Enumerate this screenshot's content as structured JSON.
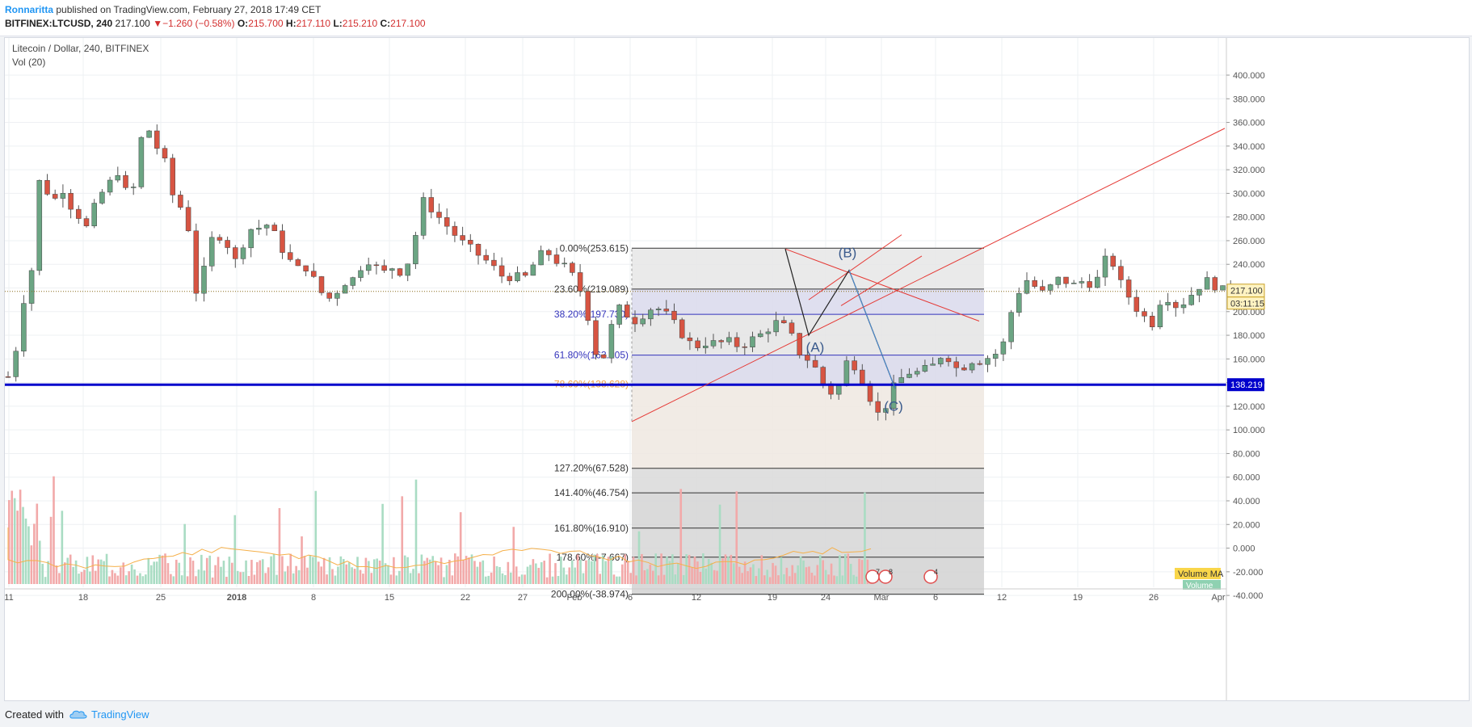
{
  "header": {
    "author": "Ronnaritta",
    "published": "published on TradingView.com, February 27, 2018 17:49 CET",
    "symbol": "BITFINEX:LTCUSD, 240",
    "last": "217.100",
    "change": "−1.260 (−0.58%)",
    "o_label": "O:",
    "o_value": "215.700",
    "h_label": "H:",
    "h_value": "217.110",
    "l_label": "L:",
    "l_value": "215.210",
    "c_label": "C:",
    "c_value": "217.100"
  },
  "legend": {
    "title": "Litecoin / Dollar, 240, BITFINEX",
    "volume": "Vol (20)"
  },
  "footer": {
    "created": "Created with",
    "brand": "TradingView"
  },
  "colors": {
    "up": "#6ba583",
    "down": "#d75442",
    "support": "#0000cc",
    "fib_line": "#333333",
    "trend": "#e53935",
    "wave": "#3a5a8c",
    "price_tag": "#0000cc"
  },
  "chart_data": {
    "type": "candlestick",
    "yaxis_ticks": [
      "400.000",
      "380.000",
      "360.000",
      "340.000",
      "320.000",
      "300.000",
      "280.000",
      "260.000",
      "240.000",
      "220.000",
      "200.000",
      "180.000",
      "160.000",
      "140.000",
      "120.000",
      "100.000",
      "80.000",
      "60.000",
      "40.000",
      "20.000",
      "0.000",
      "-20.000",
      "-40.000"
    ],
    "xaxis_ticks": [
      "11",
      "18",
      "25",
      "2018",
      "8",
      "15",
      "22",
      "27",
      "Feb",
      "6",
      "12",
      "19",
      "24",
      "Mar",
      "6",
      "12",
      "19",
      "26",
      "Apr"
    ],
    "price_path": [
      [
        0,
        145
      ],
      [
        0.4,
        160
      ],
      [
        1,
        210
      ],
      [
        1.6,
        240
      ],
      [
        2,
        310
      ],
      [
        2.6,
        300
      ],
      [
        3,
        295
      ],
      [
        3.6,
        305
      ],
      [
        4,
        290
      ],
      [
        4.6,
        280
      ],
      [
        5,
        270
      ],
      [
        5.6,
        290
      ],
      [
        6,
        300
      ],
      [
        6.6,
        310
      ],
      [
        7,
        320
      ],
      [
        7.6,
        300
      ],
      [
        8,
        300
      ],
      [
        8.5,
        345
      ],
      [
        9,
        355
      ],
      [
        9.5,
        340
      ],
      [
        10,
        330
      ],
      [
        10.5,
        300
      ],
      [
        11,
        290
      ],
      [
        11.5,
        280
      ],
      [
        12,
        215
      ],
      [
        12.5,
        230
      ],
      [
        13,
        260
      ],
      [
        13.5,
        265
      ],
      [
        14,
        260
      ],
      [
        14.5,
        240
      ],
      [
        15,
        255
      ],
      [
        15.5,
        270
      ],
      [
        16,
        270
      ],
      [
        16.5,
        275
      ],
      [
        17,
        268
      ],
      [
        17.5,
        255
      ],
      [
        18,
        245
      ],
      [
        18.5,
        235
      ],
      [
        19,
        240
      ],
      [
        19.5,
        230
      ],
      [
        20,
        218
      ],
      [
        20.5,
        210
      ],
      [
        21,
        215
      ],
      [
        21.5,
        225
      ],
      [
        22,
        225
      ],
      [
        22.5,
        235
      ],
      [
        23,
        245
      ],
      [
        23.5,
        240
      ],
      [
        24,
        230
      ],
      [
        24.5,
        240
      ],
      [
        25,
        232
      ],
      [
        25.5,
        238
      ],
      [
        26,
        250
      ],
      [
        26.5,
        295
      ],
      [
        27,
        290
      ],
      [
        27.5,
        282
      ],
      [
        28,
        275
      ],
      [
        28.5,
        268
      ],
      [
        29,
        260
      ],
      [
        29.5,
        255
      ],
      [
        30,
        250
      ],
      [
        30.5,
        245
      ],
      [
        31,
        240
      ],
      [
        31.5,
        232
      ],
      [
        32,
        228
      ],
      [
        32.5,
        232
      ],
      [
        33,
        225
      ],
      [
        33.5,
        235
      ],
      [
        34,
        245
      ],
      [
        34.5,
        252
      ],
      [
        35,
        245
      ],
      [
        35.5,
        240
      ],
      [
        36,
        235
      ],
      [
        36.5,
        225
      ],
      [
        37,
        210
      ],
      [
        37.5,
        180
      ],
      [
        38,
        150
      ],
      [
        38.5,
        175
      ],
      [
        39,
        200
      ],
      [
        39.5,
        205
      ],
      [
        40,
        190
      ],
      [
        40.5,
        195
      ],
      [
        41,
        200
      ],
      [
        41.5,
        205
      ],
      [
        42,
        200
      ],
      [
        42.5,
        195
      ],
      [
        43,
        185
      ],
      [
        43.5,
        178
      ],
      [
        44,
        170
      ],
      [
        44.5,
        172
      ],
      [
        45,
        175
      ],
      [
        45.5,
        172
      ],
      [
        46,
        175
      ],
      [
        46.5,
        174
      ],
      [
        47,
        170
      ],
      [
        47.5,
        175
      ],
      [
        48,
        178
      ],
      [
        48.5,
        182
      ],
      [
        49,
        188
      ],
      [
        49.5,
        192
      ],
      [
        50,
        185
      ],
      [
        50.5,
        175
      ],
      [
        51,
        160
      ],
      [
        51.5,
        160
      ],
      [
        52,
        148
      ],
      [
        52.5,
        135
      ],
      [
        53,
        130
      ],
      [
        53.5,
        140
      ],
      [
        54,
        165
      ],
      [
        54.5,
        150
      ],
      [
        55,
        140
      ],
      [
        55.5,
        122
      ],
      [
        56,
        110
      ],
      [
        56.5,
        125
      ],
      [
        57,
        140
      ],
      [
        57.5,
        145
      ],
      [
        58,
        150
      ],
      [
        58.5,
        148
      ],
      [
        59,
        152
      ],
      [
        59.5,
        155
      ],
      [
        60,
        165
      ],
      [
        60.5,
        160
      ],
      [
        61,
        150
      ],
      [
        61.5,
        155
      ],
      [
        62,
        160
      ],
      [
        62.5,
        158
      ],
      [
        63,
        162
      ],
      [
        63.5,
        165
      ],
      [
        64,
        175
      ],
      [
        64.5,
        205
      ],
      [
        65,
        220
      ],
      [
        65.5,
        228
      ],
      [
        66,
        220
      ],
      [
        66.5,
        215
      ],
      [
        67,
        222
      ],
      [
        67.5,
        228
      ],
      [
        68,
        225
      ],
      [
        68.5,
        222
      ],
      [
        69,
        226
      ],
      [
        69.5,
        224
      ],
      [
        70,
        228
      ],
      [
        70.5,
        245
      ],
      [
        71,
        240
      ],
      [
        71.5,
        222
      ],
      [
        72,
        212
      ],
      [
        72.5,
        202
      ],
      [
        73,
        195
      ],
      [
        73.5,
        190
      ],
      [
        74,
        210
      ],
      [
        74.5,
        212
      ],
      [
        75,
        205
      ],
      [
        75.5,
        208
      ],
      [
        76,
        215
      ],
      [
        76.5,
        222
      ],
      [
        77,
        226
      ],
      [
        77.5,
        222
      ],
      [
        78,
        218
      ],
      [
        78.5,
        217
      ]
    ],
    "support_level": 138.219,
    "last_price": 217.1,
    "price_tag": "217.100",
    "time_tag": "03:11:15",
    "support_tag": "138.219",
    "fib_levels": [
      {
        "label": "0.00%(253.615)",
        "value": 253.615
      },
      {
        "label": "23.60%(219.089)",
        "value": 219.089
      },
      {
        "label": "38.20%(197.730)",
        "value": 197.73
      },
      {
        "label": "61.80%(163.205)",
        "value": 163.205
      },
      {
        "label": "78.60%(138.628)",
        "value": 138.628
      },
      {
        "label": "127.20%(67.528)",
        "value": 67.528
      },
      {
        "label": "141.40%(46.754)",
        "value": 46.754
      },
      {
        "label": "161.80%(16.910)",
        "value": 16.91
      },
      {
        "label": "178.60%(-7.667)",
        "value": -7.667
      },
      {
        "label": "200.00%(-38.974)",
        "value": -38.974
      }
    ],
    "fib_start_low": 107.3,
    "waves": [
      {
        "label": "(A)",
        "value": 185
      },
      {
        "label": "(B)",
        "value": 242
      },
      {
        "label": "(C)",
        "value": 130
      }
    ],
    "volume_ma_label": "Volume MA",
    "volume_label": "Volume",
    "event_counts": [
      "7",
      "8",
      "4"
    ]
  }
}
